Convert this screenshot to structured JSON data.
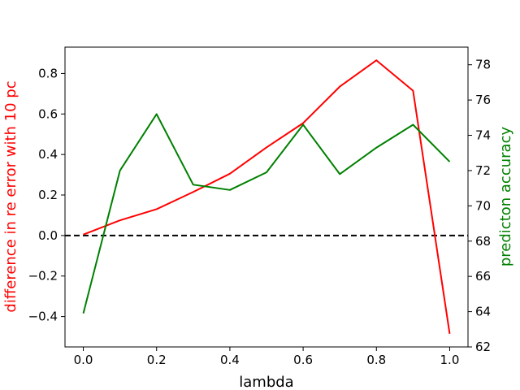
{
  "chart_data": {
    "type": "line",
    "xlabel": "lambda",
    "y_left_label": "difference in re error with 10 pc",
    "y_right_label": "predicton accuracy",
    "x": [
      0.0,
      0.1,
      0.2,
      0.3,
      0.4,
      0.5,
      0.6,
      0.7,
      0.8,
      0.9,
      1.0
    ],
    "xlim": [
      -0.05,
      1.05
    ],
    "y_left_lim": [
      -0.55,
      0.93
    ],
    "y_right_lim": [
      62,
      79
    ],
    "x_ticks": [
      "0.0",
      "0.2",
      "0.4",
      "0.6",
      "0.8",
      "1.0"
    ],
    "y_left_ticks": [
      "−0.4",
      "−0.2",
      "0.0",
      "0.2",
      "0.4",
      "0.6",
      "0.8"
    ],
    "y_right_ticks": [
      "62",
      "64",
      "66",
      "68",
      "70",
      "72",
      "74",
      "76",
      "78"
    ],
    "series": [
      {
        "axis": "left",
        "color": "#ff0000",
        "values": [
          0.005,
          0.075,
          0.13,
          0.215,
          0.305,
          0.435,
          0.555,
          0.735,
          0.865,
          0.715,
          -0.485
        ]
      },
      {
        "axis": "right",
        "color": "#008000",
        "values": [
          63.9,
          72.0,
          75.2,
          71.2,
          70.9,
          71.9,
          74.6,
          71.8,
          73.3,
          74.6,
          72.5
        ]
      }
    ],
    "reference_line": {
      "axis": "left",
      "y": 0.0,
      "style": "dashed",
      "color": "#000000"
    },
    "colors": {
      "left_label": "#ff0000",
      "right_label": "#008000"
    }
  }
}
